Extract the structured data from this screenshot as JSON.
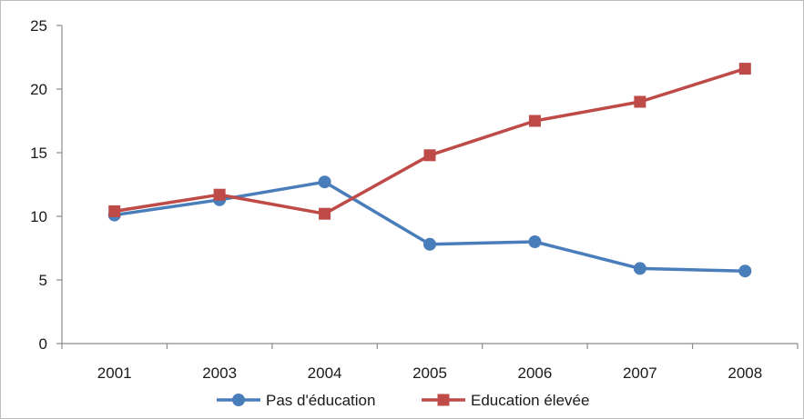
{
  "chart_data": {
    "type": "line",
    "categories": [
      "2001",
      "2003",
      "2004",
      "2005",
      "2006",
      "2007",
      "2008"
    ],
    "series": [
      {
        "name": "Pas d'éducation",
        "values": [
          10.1,
          11.3,
          12.7,
          7.8,
          8.0,
          5.9,
          5.7
        ],
        "color": "#4a7ebb",
        "marker": "circle"
      },
      {
        "name": "Education élevée",
        "values": [
          10.4,
          11.7,
          10.2,
          14.8,
          17.5,
          19.0,
          21.6
        ],
        "color": "#be4b48",
        "marker": "square"
      }
    ],
    "ylim": [
      0,
      25
    ],
    "yticks": [
      0,
      5,
      10,
      15,
      20,
      25
    ],
    "grid": false,
    "legend": "bottom"
  }
}
